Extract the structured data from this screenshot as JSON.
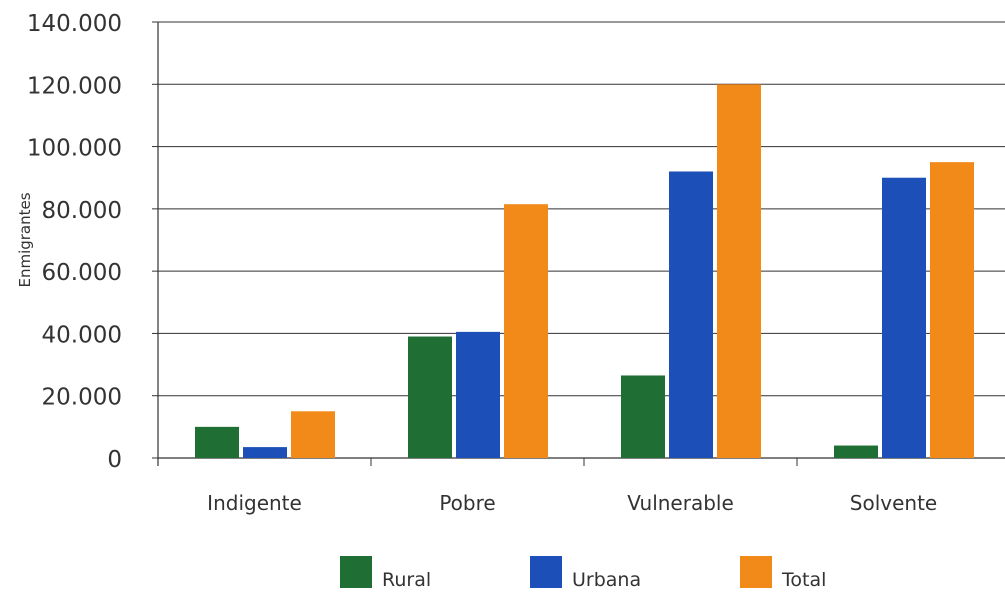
{
  "chart_data": {
    "type": "bar",
    "title": "",
    "xlabel": "",
    "ylabel": "Enmigrantes",
    "categories": [
      "Indigente",
      "Pobre",
      "Vulnerable",
      "Solvente"
    ],
    "series": [
      {
        "name": "Rural",
        "color": "#1f6f35",
        "values": [
          10000,
          39000,
          26500,
          4000
        ]
      },
      {
        "name": "Urbana",
        "color": "#1c4fb8",
        "values": [
          3500,
          40500,
          92000,
          90000
        ]
      },
      {
        "name": "Total",
        "color": "#f28a1a",
        "values": [
          15000,
          81500,
          120000,
          95000
        ]
      }
    ],
    "ylim": [
      0,
      140000
    ],
    "yticks": [
      0,
      20000,
      40000,
      60000,
      80000,
      100000,
      120000,
      140000
    ],
    "ytick_labels": [
      "0",
      "20.000",
      "40.000",
      "60.000",
      "80.000",
      "100.000",
      "120.000",
      "140.000"
    ],
    "grid": true,
    "legend_position": "bottom"
  }
}
